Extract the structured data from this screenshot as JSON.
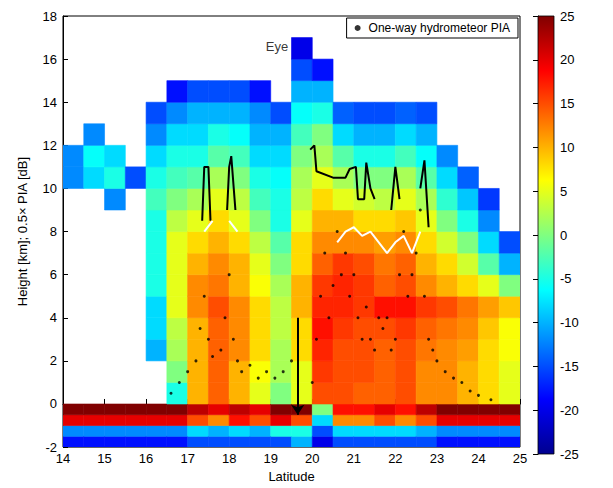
{
  "chart_data": {
    "type": "heatmap",
    "xlabel": "Latitude",
    "ylabel": "Height [km]; 0.5× PIA [dB]",
    "xlim": [
      14,
      25
    ],
    "xticks": [
      14,
      15,
      16,
      17,
      18,
      19,
      20,
      21,
      22,
      23,
      24,
      25
    ],
    "ylim": [
      -2,
      18
    ],
    "yticks": [
      -2,
      0,
      2,
      4,
      6,
      8,
      10,
      12,
      14,
      16,
      18
    ],
    "grid": false,
    "legend": "upper right",
    "colorbar_range": [
      -25,
      25
    ],
    "colorbar_ticks": [
      -25,
      -20,
      -15,
      -10,
      -5,
      0,
      5,
      10,
      15,
      20,
      25
    ],
    "x_edges": [
      14,
      14.5,
      15,
      15.5,
      16,
      16.5,
      17,
      17.5,
      18,
      18.5,
      19,
      19.5,
      20,
      20.5,
      21,
      21.5,
      22,
      22.5,
      23,
      23.5,
      24,
      24.5,
      25
    ],
    "y_edges": [
      -2,
      -1.5,
      -1,
      -0.5,
      0,
      1,
      2,
      3,
      4,
      5,
      6,
      7,
      8,
      9,
      10,
      11,
      12,
      13,
      14,
      15,
      16,
      17,
      18
    ],
    "z": [
      [
        -18,
        -12,
        20,
        25,
        null,
        null,
        null,
        null,
        null,
        null,
        null,
        null,
        null,
        null,
        -12,
        -12,
        null,
        null,
        null,
        null,
        null,
        null
      ],
      [
        -18,
        -12,
        20,
        25,
        null,
        null,
        null,
        null,
        null,
        null,
        null,
        null,
        null,
        null,
        -8,
        -6,
        -12,
        null,
        null,
        null,
        null,
        null
      ],
      [
        -18,
        -12,
        20,
        25,
        null,
        null,
        null,
        null,
        null,
        null,
        null,
        null,
        null,
        -12,
        -5,
        -8,
        null,
        null,
        null,
        null,
        null,
        null
      ],
      [
        -18,
        -12,
        20,
        25,
        null,
        null,
        null,
        null,
        null,
        null,
        null,
        null,
        null,
        null,
        -15,
        null,
        null,
        null,
        null,
        null,
        null,
        null
      ],
      [
        -18,
        -12,
        20,
        25,
        null,
        null,
        -10,
        -8,
        -8,
        -5,
        -5,
        -5,
        -5,
        -3,
        -5,
        -8,
        -12,
        -15,
        null,
        null,
        null,
        null
      ],
      [
        -18,
        -12,
        20,
        25,
        -5,
        0,
        2,
        3,
        5,
        5,
        5,
        5,
        3,
        0,
        -3,
        -5,
        -8,
        -12,
        -18,
        null,
        null,
        null
      ],
      [
        -15,
        -8,
        15,
        22,
        10,
        10,
        10,
        10,
        12,
        12,
        10,
        8,
        5,
        2,
        -2,
        -5,
        -8,
        -10,
        -15,
        null,
        null,
        null
      ],
      [
        -15,
        -10,
        12,
        20,
        14,
        14,
        14,
        14,
        15,
        13,
        12,
        10,
        8,
        5,
        2,
        -2,
        -5,
        -10,
        -15,
        null,
        null,
        null
      ],
      [
        -15,
        -8,
        18,
        22,
        10,
        10,
        12,
        12,
        12,
        10,
        10,
        8,
        5,
        3,
        0,
        -3,
        -6,
        -10,
        -15,
        null,
        null,
        null
      ],
      [
        -15,
        -10,
        15,
        20,
        5,
        6,
        8,
        8,
        8,
        6,
        5,
        3,
        0,
        -3,
        -5,
        -8,
        -10,
        -12,
        -18,
        null,
        null,
        null
      ],
      [
        -15,
        -5,
        20,
        25,
        0,
        2,
        2,
        3,
        3,
        2,
        0,
        -2,
        -5,
        -5,
        -6,
        -8,
        -10,
        -15,
        null,
        null,
        null,
        null
      ],
      [
        -10,
        -5,
        15,
        25,
        5,
        5,
        8,
        8,
        10,
        10,
        8,
        8,
        5,
        3,
        2,
        0,
        -3,
        -6,
        -10,
        -15,
        -20,
        null
      ],
      [
        -20,
        -15,
        -8,
        0,
        15,
        16,
        17,
        18,
        17,
        16,
        14,
        12,
        10,
        8,
        5,
        2,
        0,
        -5,
        -10,
        -18,
        null,
        null
      ],
      [
        -15,
        -8,
        12,
        18,
        15,
        15,
        15,
        16,
        17,
        17,
        16,
        12,
        10,
        5,
        2,
        -2,
        -8,
        -14,
        null,
        null,
        null,
        null
      ],
      [
        -15,
        -8,
        12,
        18,
        14,
        15,
        15,
        15,
        16,
        16,
        15,
        12,
        8,
        4,
        0,
        -5,
        -10,
        -15,
        null,
        null,
        null,
        null
      ],
      [
        -15,
        -8,
        15,
        20,
        14,
        14,
        14,
        15,
        18,
        14,
        13,
        11,
        8,
        3,
        0,
        -5,
        -10,
        -15,
        null,
        null,
        null,
        null
      ],
      [
        -15,
        -8,
        12,
        18,
        15,
        15,
        15,
        16,
        18,
        15,
        14,
        12,
        9,
        5,
        2,
        -3,
        -8,
        -14,
        null,
        null,
        null,
        null
      ],
      [
        -15,
        -10,
        15,
        22,
        12,
        12,
        13,
        14,
        16,
        12,
        10,
        8,
        5,
        2,
        -2,
        -6,
        -10,
        -15,
        null,
        null,
        null,
        null
      ],
      [
        -18,
        -12,
        20,
        25,
        12,
        12,
        12,
        13,
        15,
        10,
        8,
        4,
        0,
        -4,
        -8,
        -12,
        null,
        null,
        null,
        null,
        null,
        null
      ],
      [
        -18,
        -12,
        20,
        25,
        10,
        10,
        11,
        12,
        13,
        8,
        4,
        0,
        -5,
        -9,
        -14,
        null,
        null,
        null,
        null,
        null,
        null,
        null
      ],
      [
        -18,
        -12,
        20,
        25,
        8,
        8,
        8,
        9,
        11,
        5,
        -2,
        -8,
        -12,
        -16,
        null,
        null,
        null,
        null,
        null,
        null,
        null,
        null
      ],
      [
        -18,
        -12,
        20,
        25,
        5,
        5,
        6,
        6,
        9,
        0,
        -10,
        -15,
        null,
        null,
        null,
        null,
        null,
        null,
        null,
        null,
        null,
        null
      ]
    ],
    "series": [
      {
        "name": "One-way hydrometeor PIA",
        "type": "scatter",
        "color": "#000000",
        "marker": "circle",
        "x": [
          16.6,
          16.8,
          17.0,
          17.2,
          17.3,
          17.4,
          17.5,
          17.6,
          17.8,
          17.9,
          18.0,
          18.1,
          18.2,
          18.3,
          18.5,
          18.7,
          18.9,
          19.1,
          19.3,
          19.5,
          20.0,
          20.1,
          20.2,
          20.3,
          20.4,
          20.5,
          20.6,
          20.7,
          20.8,
          20.9,
          21.0,
          21.1,
          21.2,
          21.3,
          21.4,
          21.5,
          21.6,
          21.7,
          21.8,
          21.9,
          22.0,
          22.1,
          22.2,
          22.3,
          22.4,
          22.5,
          22.6,
          22.7,
          22.8,
          22.9,
          23.0,
          23.2,
          23.4,
          23.6,
          23.8,
          24.0,
          24.3
        ],
        "values": [
          0.5,
          1,
          1.5,
          2,
          3.5,
          5,
          3,
          2.2,
          2.5,
          4,
          6,
          3,
          2,
          1.5,
          1.8,
          1.2,
          1.5,
          1.2,
          1.5,
          2,
          1,
          3,
          5,
          7,
          4,
          5.5,
          8,
          6,
          7,
          5,
          6,
          4,
          3,
          4.5,
          3,
          2.5,
          4,
          3.5,
          4,
          2.5,
          3,
          6,
          8,
          5,
          6,
          7,
          9,
          5,
          3,
          2.5,
          2,
          1.5,
          1.2,
          1,
          0.6,
          0.4,
          0.2
        ]
      },
      {
        "type": "line",
        "color": "#000000",
        "line_style": "solid",
        "x": [
          17.35,
          17.4,
          17.5,
          17.55,
          null,
          17.95,
          18.0,
          18.05,
          18.15,
          null,
          19.95,
          20.05,
          20.1,
          20.5,
          20.8,
          20.9,
          21.05,
          21.1,
          21.25,
          21.3,
          21.4,
          21.5,
          null,
          21.9,
          22.0,
          22.1,
          null,
          22.6,
          22.7,
          22.8
        ],
        "values": [
          8.5,
          11,
          11,
          8.5,
          null,
          9,
          11,
          11.5,
          9,
          null,
          11.8,
          12,
          10.8,
          10.5,
          10.5,
          10.9,
          11,
          9.5,
          9.5,
          11.2,
          10,
          9.5,
          null,
          9,
          11,
          9.5,
          null,
          10,
          11.3,
          8.2
        ]
      },
      {
        "type": "line",
        "color": "#ffffff",
        "line_style": "solid",
        "x": [
          17.4,
          17.6,
          null,
          18.0,
          18.2,
          null,
          20.6,
          20.8,
          21.0,
          21.2,
          21.4,
          21.6,
          21.8,
          22.0,
          22.2,
          22.4,
          22.6
        ],
        "values": [
          8,
          8.5,
          null,
          8.5,
          8,
          null,
          7.5,
          8,
          8.2,
          7.8,
          8,
          7.5,
          7,
          7.5,
          7.8,
          7,
          8
        ]
      }
    ],
    "annotations": [
      {
        "text": "Eye",
        "x": 19.15,
        "y": 16.6
      }
    ],
    "eye_arrow": {
      "x": 19.65,
      "y": [
        4,
        -0.5
      ]
    }
  }
}
